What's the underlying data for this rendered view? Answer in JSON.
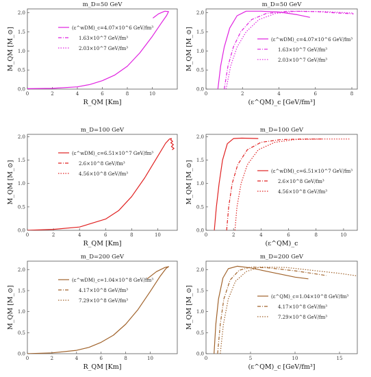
{
  "chart_data": [
    {
      "type": "line",
      "title": "m_D=50 GeV",
      "xlabel": "R_QM [Km]",
      "ylabel": "M_QM [M_⊙]",
      "xlim": [
        0,
        12
      ],
      "ylim": [
        0,
        2.1
      ],
      "xticks": [
        "0",
        "2",
        "4",
        "6",
        "8",
        "10"
      ],
      "yticks": [
        "0.0",
        "0.5",
        "1.0",
        "1.5",
        "2.0"
      ],
      "color": "#e020e0",
      "legend": {
        "position": "upper-left",
        "entries": [
          "(ε^wDM)_c=4.07×10^6 GeV/fm³",
          "1.63×10^7 GeV/fm³",
          "2.03×10^7 GeV/fm³"
        ]
      },
      "series": [
        {
          "name": "(ε^wDM)_c=4.07×10^6 GeV/fm³",
          "points": [
            [
              0,
              0.01
            ],
            [
              2,
              0.02
            ],
            [
              4,
              0.06
            ],
            [
              5,
              0.12
            ],
            [
              6,
              0.22
            ],
            [
              7,
              0.37
            ],
            [
              8,
              0.6
            ],
            [
              9,
              0.95
            ],
            [
              10,
              1.38
            ],
            [
              10.7,
              1.72
            ],
            [
              11.15,
              1.93
            ],
            [
              11.3,
              2.03
            ],
            [
              11.0,
              2.04
            ],
            [
              10.5,
              1.97
            ],
            [
              10.05,
              1.86
            ]
          ]
        }
      ]
    },
    {
      "type": "line",
      "title": "m_D=50 GeV",
      "xlabel": "(ε^QM)_c [GeV/fm³]",
      "ylabel": "M_QM [M_⊙]",
      "xlim": [
        0,
        8.3
      ],
      "ylim": [
        0,
        2.1
      ],
      "xticks": [
        "0",
        "2",
        "4",
        "6",
        "8"
      ],
      "yticks": [
        "0.0",
        "0.5",
        "1.0",
        "1.5",
        "2.0"
      ],
      "color": "#e020e0",
      "legend": {
        "position": "center-right",
        "entries": [
          "(ε^wDM)_c=4.07×10^6 GeV/fm³",
          "1.63×10^7 GeV/fm³",
          "2.03×10^7 GeV/fm³"
        ]
      },
      "series": [
        {
          "name": "(ε^wDM)_c=4.07×10^6 GeV/fm³",
          "style": "solid",
          "points": [
            [
              0.65,
              0
            ],
            [
              0.8,
              0.6
            ],
            [
              1.0,
              1.1
            ],
            [
              1.3,
              1.6
            ],
            [
              1.7,
              1.92
            ],
            [
              2.2,
              2.04
            ],
            [
              3,
              2.04
            ],
            [
              4,
              2.02
            ],
            [
              5,
              1.95
            ],
            [
              5.7,
              1.88
            ]
          ]
        },
        {
          "name": "1.63×10^7 GeV/fm³",
          "style": "dashdot",
          "points": [
            [
              1.0,
              0
            ],
            [
              1.2,
              0.6
            ],
            [
              1.5,
              1.1
            ],
            [
              1.9,
              1.5
            ],
            [
              2.5,
              1.82
            ],
            [
              3.3,
              1.98
            ],
            [
              4.5,
              2.04
            ],
            [
              6,
              2.03
            ],
            [
              7,
              2.0
            ],
            [
              8.1,
              1.97
            ]
          ]
        },
        {
          "name": "2.03×10^7 GeV/fm³",
          "style": "dotted",
          "points": [
            [
              1.1,
              0
            ],
            [
              1.35,
              0.6
            ],
            [
              1.7,
              1.1
            ],
            [
              2.2,
              1.5
            ],
            [
              2.9,
              1.82
            ],
            [
              3.8,
              1.98
            ],
            [
              5,
              2.04
            ],
            [
              6.5,
              2.03
            ],
            [
              8.1,
              1.99
            ]
          ]
        }
      ]
    },
    {
      "type": "line",
      "title": "m_D=100 GeV",
      "xlabel": "R_QM [Km]",
      "ylabel": "M_QM [M_⊙]",
      "xlim": [
        0,
        11.5
      ],
      "ylim": [
        0,
        2.05
      ],
      "xticks": [
        "0",
        "2",
        "4",
        "6",
        "8",
        "10"
      ],
      "yticks": [
        "0.0",
        "0.5",
        "1.0",
        "1.5",
        "2.0"
      ],
      "color": "#e02020",
      "legend": {
        "position": "upper-left",
        "entries": [
          "(ε^wDM)_c=6.51×10^7 GeV/fm³",
          "2.6×10^8 GeV/fm³",
          "4.56×10^8 GeV/fm³"
        ]
      },
      "series": [
        {
          "name": "(ε^wDM)_c=6.51×10^7 GeV/fm³",
          "points": [
            [
              0,
              0.0
            ],
            [
              2,
              0.02
            ],
            [
              4,
              0.07
            ],
            [
              6,
              0.24
            ],
            [
              7,
              0.42
            ],
            [
              8,
              0.72
            ],
            [
              9,
              1.12
            ],
            [
              10,
              1.58
            ],
            [
              10.6,
              1.86
            ],
            [
              10.9,
              1.95
            ],
            [
              11.05,
              1.96
            ],
            [
              11.0,
              1.93
            ],
            [
              11.15,
              1.9
            ],
            [
              11.0,
              1.87
            ],
            [
              11.2,
              1.83
            ],
            [
              11.05,
              1.79
            ],
            [
              11.25,
              1.75
            ],
            [
              11.1,
              1.72
            ]
          ]
        }
      ]
    },
    {
      "type": "line",
      "title": "m_D=100 GeV",
      "xlabel": "(ε^QM)_c",
      "ylabel": "M_QM [M_⊙]",
      "xlim": [
        0,
        11
      ],
      "ylim": [
        0,
        2.05
      ],
      "xticks": [
        "0",
        "2",
        "4",
        "6",
        "8",
        "10"
      ],
      "yticks": [
        "0.0",
        "0.5",
        "1.0",
        "1.5",
        "2.0"
      ],
      "color": "#e02020",
      "legend": {
        "position": "center-right",
        "entries": [
          "(ε^wDM)_c=6.51×10^7 GeV/fm³",
          "2.6×10^8 GeV/fm³",
          "4.56×10^8 GeV/fm³"
        ]
      },
      "series": [
        {
          "name": "(ε^wDM)_c=6.51×10^7 GeV/fm³",
          "style": "solid",
          "points": [
            [
              0.6,
              0
            ],
            [
              0.75,
              0.5
            ],
            [
              0.95,
              1.0
            ],
            [
              1.2,
              1.5
            ],
            [
              1.55,
              1.85
            ],
            [
              2.0,
              1.96
            ],
            [
              2.6,
              1.97
            ],
            [
              3.8,
              1.96
            ]
          ]
        },
        {
          "name": "2.6×10^8 GeV/fm³",
          "style": "dashdot",
          "points": [
            [
              1.5,
              0
            ],
            [
              1.65,
              0.5
            ],
            [
              1.9,
              1.0
            ],
            [
              2.3,
              1.4
            ],
            [
              3,
              1.72
            ],
            [
              4,
              1.88
            ],
            [
              5.5,
              1.94
            ],
            [
              7,
              1.95
            ],
            [
              8.5,
              1.95
            ]
          ]
        },
        {
          "name": "4.56×10^8 GeV/fm³",
          "style": "dotted",
          "points": [
            [
              2.1,
              0
            ],
            [
              2.25,
              0.5
            ],
            [
              2.55,
              1.0
            ],
            [
              3.0,
              1.4
            ],
            [
              3.8,
              1.72
            ],
            [
              5,
              1.88
            ],
            [
              6.5,
              1.94
            ],
            [
              8.5,
              1.95
            ],
            [
              10.5,
              1.95
            ]
          ]
        }
      ]
    },
    {
      "type": "line",
      "title": "m_D=200 GeV",
      "xlabel": "R_QM [Km]",
      "ylabel": "M_QM [M_⊙]",
      "xlim": [
        0,
        12.2
      ],
      "ylim": [
        0,
        2.2
      ],
      "xticks": [
        "0",
        "2",
        "4",
        "6",
        "8",
        "10"
      ],
      "yticks": [
        "0.0",
        "0.5",
        "1.0",
        "1.5",
        "2.0"
      ],
      "color": "#a0622a",
      "legend": {
        "position": "upper-left",
        "entries": [
          "(ε^wDM)_c=1.04×10^8 GeV/fm³",
          "4.17×10^8 GeV/fm³",
          "7.29×10^8 GeV/fm³"
        ]
      },
      "series": [
        {
          "name": "(ε^wDM)_c=1.04×10^8 GeV/fm³",
          "points": [
            [
              0,
              0.0
            ],
            [
              2,
              0.02
            ],
            [
              4,
              0.08
            ],
            [
              5,
              0.15
            ],
            [
              6,
              0.27
            ],
            [
              7,
              0.44
            ],
            [
              8,
              0.7
            ],
            [
              9,
              1.05
            ],
            [
              10,
              1.48
            ],
            [
              10.8,
              1.84
            ],
            [
              11.3,
              2.03
            ],
            [
              11.5,
              2.07
            ],
            [
              11.2,
              2.05
            ],
            [
              10.5,
              1.95
            ],
            [
              9.75,
              1.78
            ]
          ]
        }
      ]
    },
    {
      "type": "line",
      "title": "m_D=200 GeV",
      "xlabel": "(ε^QM)_c [GeV/fm³]",
      "ylabel": "M_QM [M_⊙]",
      "xlim": [
        0,
        17
      ],
      "ylim": [
        0,
        2.2
      ],
      "xticks": [
        "0",
        "5",
        "10",
        "15"
      ],
      "yticks": [
        "0.0",
        "0.5",
        "1.0",
        "1.5",
        "2.0"
      ],
      "color": "#a0622a",
      "legend": {
        "position": "center-right",
        "entries": [
          "(ε^QM)_c=1.04×10^8 GeV/fm³",
          "4.17×10^8 GeV/fm³",
          "7.29×10^8 GeV/fm³"
        ]
      },
      "series": [
        {
          "name": "(ε^QM)_c=1.04×10^8 GeV/fm³",
          "style": "solid",
          "points": [
            [
              0.9,
              0
            ],
            [
              1.1,
              0.7
            ],
            [
              1.4,
              1.3
            ],
            [
              1.9,
              1.8
            ],
            [
              2.5,
              2.02
            ],
            [
              3.5,
              2.08
            ],
            [
              5,
              2.04
            ],
            [
              7,
              1.95
            ],
            [
              10,
              1.82
            ],
            [
              11.5,
              1.78
            ]
          ]
        },
        {
          "name": "4.17×10^8 GeV/fm³",
          "style": "dashdot",
          "points": [
            [
              1.3,
              0
            ],
            [
              1.6,
              0.7
            ],
            [
              2.0,
              1.3
            ],
            [
              2.7,
              1.75
            ],
            [
              3.7,
              1.98
            ],
            [
              5,
              2.06
            ],
            [
              7,
              2.04
            ],
            [
              10,
              1.97
            ],
            [
              13.5,
              1.86
            ]
          ]
        },
        {
          "name": "7.29×10^8 GeV/fm³",
          "style": "dotted",
          "points": [
            [
              1.6,
              0
            ],
            [
              1.95,
              0.7
            ],
            [
              2.5,
              1.3
            ],
            [
              3.3,
              1.72
            ],
            [
              4.5,
              1.95
            ],
            [
              6,
              2.06
            ],
            [
              9,
              2.05
            ],
            [
              12,
              1.98
            ],
            [
              15,
              1.91
            ],
            [
              17,
              1.85
            ]
          ]
        }
      ]
    }
  ]
}
